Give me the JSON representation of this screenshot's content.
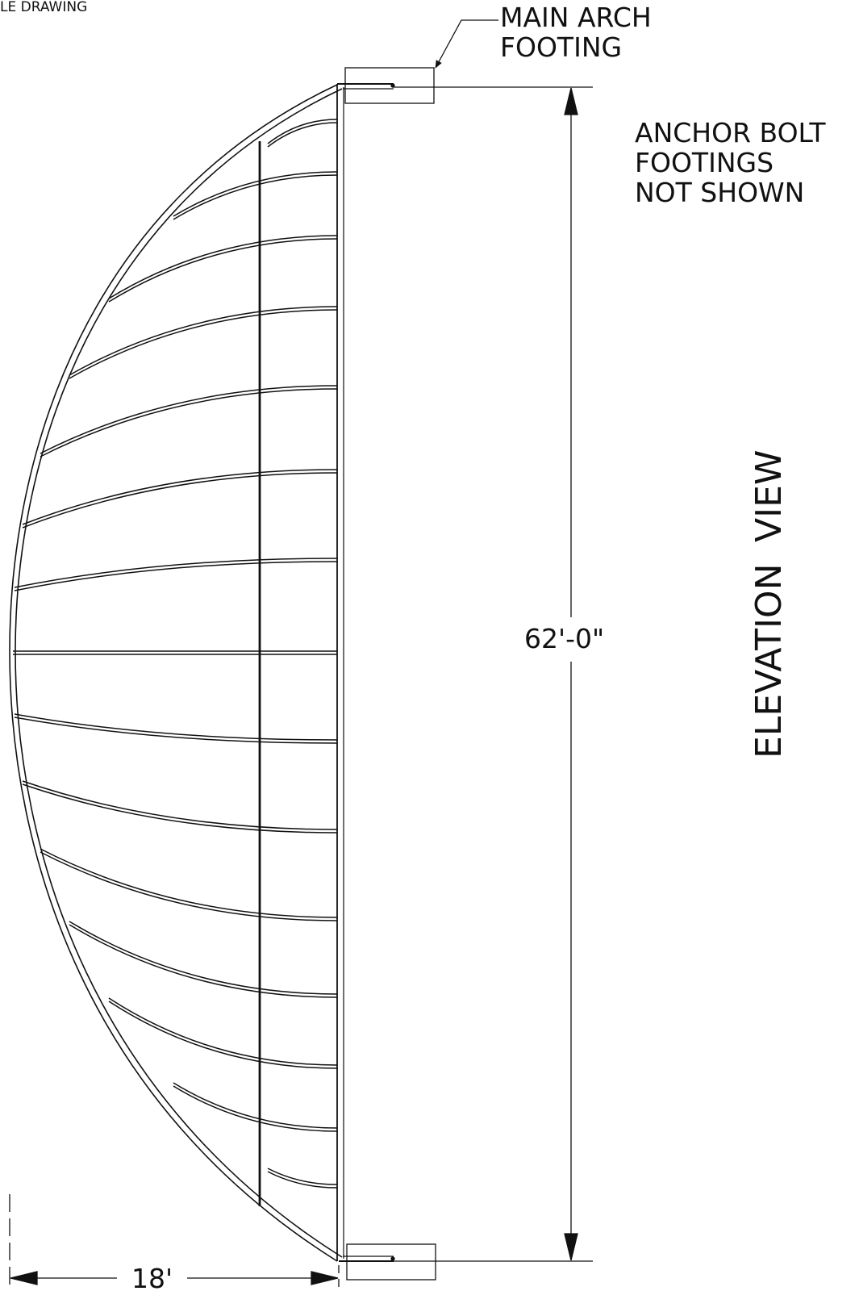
{
  "drawing": {
    "header_text": "LE DRAWING",
    "main_arch_line1": "MAIN ARCH",
    "main_arch_line2": "FOOTING",
    "anchor_line1": "ANCHOR BOLT",
    "anchor_line2": "FOOTINGS",
    "anchor_line3": "NOT SHOWN",
    "height_dimension": "62'-0\"",
    "width_dimension": "18'",
    "view_title_word1": "ELEVATION",
    "view_title_word2": "VIEW"
  },
  "colors": {
    "line": "#111111",
    "background": "#ffffff"
  }
}
